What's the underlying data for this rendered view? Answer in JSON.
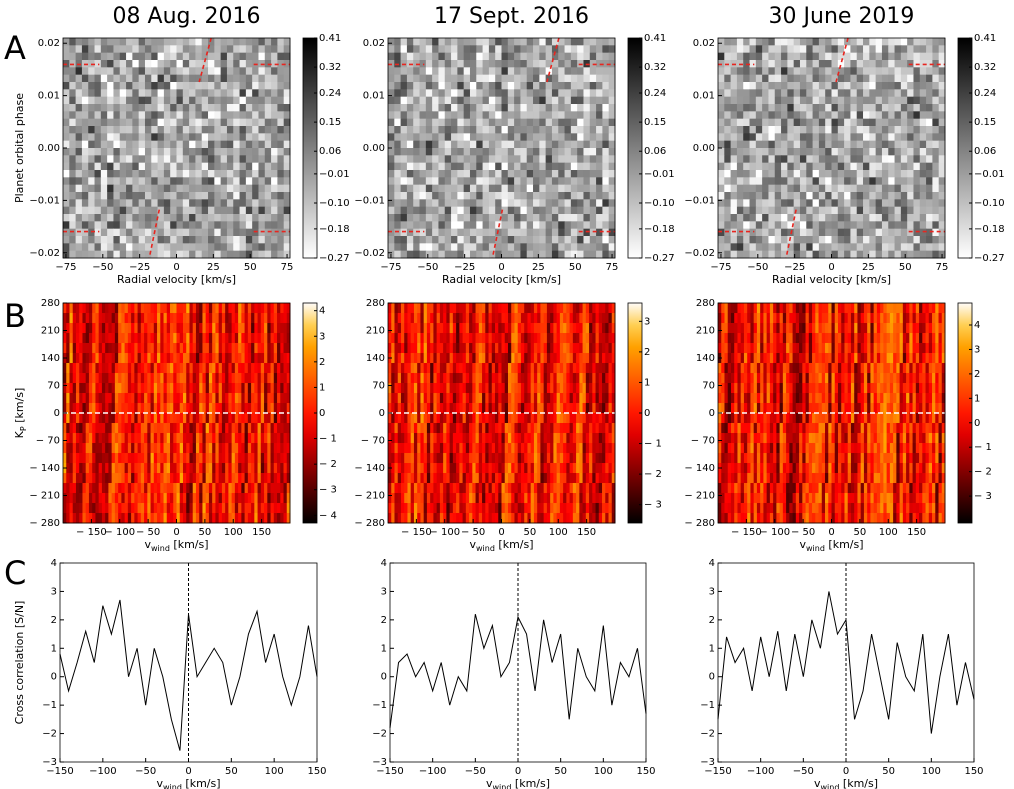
{
  "figure": {
    "row_labels": [
      "A",
      "B",
      "C"
    ]
  },
  "chart_data": [
    {
      "type": "heatmap",
      "cmap": "gray_r",
      "title": "08 Aug. 2016",
      "xlabel": "Radial velocity [km/s]",
      "ylabel": "Planet orbital phase",
      "xlim": [
        -77,
        77
      ],
      "ylim": [
        -0.021,
        0.021
      ],
      "xticks": [
        {
          "value": -75,
          "label": "−75"
        },
        {
          "value": -50,
          "label": "−50"
        },
        {
          "value": -25,
          "label": "−25"
        },
        0,
        25,
        50,
        75
      ],
      "yticks": [
        {
          "value": -0.02,
          "label": "−0.02"
        },
        {
          "value": -0.01,
          "label": "−0.01"
        },
        {
          "value": 0,
          "label": "0.00"
        },
        {
          "value": 0.01,
          "label": "0.01"
        },
        {
          "value": 0.02,
          "label": "0.02"
        }
      ],
      "clim": [
        -0.27,
        0.41
      ],
      "cticks": [
        0.41,
        0.32,
        0.24,
        0.15,
        0.06,
        {
          "value": -0.01,
          "label": "−0.01"
        },
        {
          "value": -0.1,
          "label": "−0.10"
        },
        {
          "value": -0.18,
          "label": "−0.18"
        },
        {
          "value": -0.27,
          "label": "−0.27"
        }
      ]
    },
    {
      "type": "heatmap",
      "cmap": "gray_r",
      "title": "17 Sept. 2016",
      "xlabel": "Radial velocity [km/s]",
      "xlim": [
        -77,
        77
      ],
      "ylim": [
        -0.021,
        0.021
      ],
      "xticks": [
        {
          "value": -75,
          "label": "−75"
        },
        {
          "value": -50,
          "label": "−50"
        },
        {
          "value": -25,
          "label": "−25"
        },
        0,
        25,
        50,
        75
      ],
      "yticks": [
        {
          "value": -0.02,
          "label": "−0.02"
        },
        {
          "value": -0.01,
          "label": "−0.01"
        },
        {
          "value": 0,
          "label": "0.00"
        },
        {
          "value": 0.01,
          "label": "0.01"
        },
        {
          "value": 0.02,
          "label": "0.02"
        }
      ],
      "clim": [
        -0.27,
        0.41
      ],
      "cticks": [
        0.41,
        0.32,
        0.24,
        0.15,
        0.06,
        {
          "value": -0.01,
          "label": "−0.01"
        },
        {
          "value": -0.1,
          "label": "−0.10"
        },
        {
          "value": -0.18,
          "label": "−0.18"
        },
        {
          "value": -0.27,
          "label": "−0.27"
        }
      ]
    },
    {
      "type": "heatmap",
      "cmap": "gray_r",
      "title": "30 June 2019",
      "xlabel": "Radial velocity [km/s]",
      "xlim": [
        -77,
        77
      ],
      "ylim": [
        -0.021,
        0.021
      ],
      "xticks": [
        {
          "value": -75,
          "label": "−75"
        },
        {
          "value": -50,
          "label": "−50"
        },
        {
          "value": -25,
          "label": "−25"
        },
        0,
        25,
        50,
        75
      ],
      "yticks": [
        {
          "value": -0.02,
          "label": "−0.02"
        },
        {
          "value": -0.01,
          "label": "−0.01"
        },
        {
          "value": 0,
          "label": "0.00"
        },
        {
          "value": 0.01,
          "label": "0.01"
        },
        {
          "value": 0.02,
          "label": "0.02"
        }
      ],
      "clim": [
        -0.27,
        0.41
      ],
      "cticks": [
        0.41,
        0.32,
        0.24,
        0.15,
        0.06,
        {
          "value": -0.01,
          "label": "−0.01"
        },
        {
          "value": -0.1,
          "label": "−0.10"
        },
        {
          "value": -0.18,
          "label": "−0.18"
        },
        {
          "value": -0.27,
          "label": "−0.27"
        }
      ]
    },
    {
      "type": "heatmap",
      "cmap": "hot",
      "xlabel": {
        "main": "v",
        "sub": "wind",
        "rest": " [km/s]"
      },
      "ylabel": {
        "main": "K",
        "sub": "P",
        "rest": " [km/s]"
      },
      "xlim": [
        -200,
        200
      ],
      "ylim": [
        -280,
        280
      ],
      "xticks": [
        {
          "value": -150,
          "label": "− 150"
        },
        {
          "value": -100,
          "label": "− 100"
        },
        {
          "value": -50,
          "label": "− 50"
        },
        0,
        50,
        100,
        150
      ],
      "yticks": [
        {
          "value": -280,
          "label": "− 280"
        },
        {
          "value": -210,
          "label": "− 210"
        },
        {
          "value": -140,
          "label": "− 140"
        },
        {
          "value": -70,
          "label": "− 70"
        },
        0,
        70,
        140,
        210,
        280
      ],
      "clim": [
        -4.3,
        4.3
      ],
      "cticks": [
        4,
        3,
        2,
        1,
        0,
        {
          "value": -1,
          "label": "− 1"
        },
        {
          "value": -2,
          "label": "− 2"
        },
        {
          "value": -3,
          "label": "− 3"
        },
        {
          "value": -4,
          "label": "− 4"
        }
      ]
    },
    {
      "type": "heatmap",
      "cmap": "hot",
      "xlabel": {
        "main": "v",
        "sub": "wind",
        "rest": " [km/s]"
      },
      "xlim": [
        -200,
        200
      ],
      "ylim": [
        -280,
        280
      ],
      "xticks": [
        {
          "value": -150,
          "label": "− 150"
        },
        {
          "value": -100,
          "label": "− 100"
        },
        {
          "value": -50,
          "label": "− 50"
        },
        0,
        50,
        100,
        150
      ],
      "yticks": [
        {
          "value": -280,
          "label": "− 280"
        },
        {
          "value": -210,
          "label": "− 210"
        },
        {
          "value": -140,
          "label": "− 140"
        },
        {
          "value": -70,
          "label": "− 70"
        },
        0,
        70,
        140,
        210,
        280
      ],
      "clim": [
        -3.6,
        3.6
      ],
      "cticks": [
        3,
        2,
        1,
        0,
        {
          "value": -1,
          "label": "− 1"
        },
        {
          "value": -2,
          "label": "− 2"
        },
        {
          "value": -3,
          "label": "− 3"
        }
      ]
    },
    {
      "type": "heatmap",
      "cmap": "hot",
      "xlabel": {
        "main": "v",
        "sub": "wind",
        "rest": " [km/s]"
      },
      "xlim": [
        -200,
        200
      ],
      "ylim": [
        -280,
        280
      ],
      "xticks": [
        {
          "value": -150,
          "label": "− 150"
        },
        {
          "value": -100,
          "label": "− 100"
        },
        {
          "value": -50,
          "label": "− 50"
        },
        0,
        50,
        100,
        150
      ],
      "yticks": [
        {
          "value": -280,
          "label": "− 280"
        },
        {
          "value": -210,
          "label": "− 210"
        },
        {
          "value": -140,
          "label": "− 140"
        },
        {
          "value": -70,
          "label": "− 70"
        },
        0,
        70,
        140,
        210,
        280
      ],
      "clim": [
        -4.1,
        4.9
      ],
      "cticks": [
        4,
        3,
        2,
        1,
        0,
        {
          "value": -1,
          "label": "− 1"
        },
        {
          "value": -2,
          "label": "− 2"
        },
        {
          "value": -3,
          "label": "− 3"
        }
      ]
    },
    {
      "type": "line",
      "color": "#000000",
      "xlabel": {
        "main": "v",
        "sub": "wind",
        "rest": " [km/s]"
      },
      "ylabel": "Cross correlation [S/N]",
      "xlim": [
        -150,
        150
      ],
      "ylim": [
        -3,
        4
      ],
      "xticks": [
        {
          "value": -150,
          "label": "−150"
        },
        {
          "value": -100,
          "label": "−100"
        },
        {
          "value": -50,
          "label": "−50"
        },
        0,
        50,
        100,
        150
      ],
      "yticks": [
        {
          "value": -3,
          "label": "−3"
        },
        {
          "value": -2,
          "label": "−2"
        },
        {
          "value": -1,
          "label": "−1"
        },
        0,
        1,
        2,
        3,
        4
      ],
      "x": [
        -150,
        -140,
        -130,
        -120,
        -110,
        -100,
        -90,
        -80,
        -70,
        -60,
        -50,
        -40,
        -30,
        -20,
        -10,
        0,
        10,
        20,
        30,
        40,
        50,
        60,
        70,
        80,
        90,
        100,
        110,
        120,
        130,
        140,
        150
      ],
      "values": [
        0.8,
        -0.5,
        0.5,
        1.6,
        0.5,
        2.5,
        1.5,
        2.7,
        0,
        1,
        -1,
        1,
        0,
        -1.5,
        -2.6,
        2.2,
        0,
        0.5,
        1,
        0.5,
        -1,
        0,
        1.5,
        2.3,
        0.5,
        1.5,
        0,
        -1,
        0,
        1.8,
        0
      ]
    },
    {
      "type": "line",
      "color": "#000000",
      "xlabel": {
        "main": "v",
        "sub": "wind",
        "rest": " [km/s]"
      },
      "xlim": [
        -150,
        150
      ],
      "ylim": [
        -3,
        4
      ],
      "xticks": [
        {
          "value": -150,
          "label": "−150"
        },
        {
          "value": -100,
          "label": "−100"
        },
        {
          "value": -50,
          "label": "−50"
        },
        0,
        50,
        100,
        150
      ],
      "yticks": [
        {
          "value": -3,
          "label": "−3"
        },
        {
          "value": -2,
          "label": "−2"
        },
        {
          "value": -1,
          "label": "−1"
        },
        0,
        1,
        2,
        3,
        4
      ],
      "x": [
        -150,
        -140,
        -130,
        -120,
        -110,
        -100,
        -90,
        -80,
        -70,
        -60,
        -50,
        -40,
        -30,
        -20,
        -10,
        0,
        10,
        20,
        30,
        40,
        50,
        60,
        70,
        80,
        90,
        100,
        110,
        120,
        130,
        140,
        150
      ],
      "values": [
        -1.8,
        0.5,
        0.8,
        0,
        0.5,
        -0.5,
        0.5,
        -1,
        0,
        -0.5,
        2.2,
        1,
        1.8,
        0,
        0.5,
        2.1,
        1.5,
        -0.5,
        2,
        0.5,
        1.5,
        -1.5,
        1,
        0,
        -0.5,
        1.8,
        -1,
        0.5,
        0,
        1,
        -1.3
      ]
    },
    {
      "type": "line",
      "color": "#000000",
      "xlabel": {
        "main": "v",
        "sub": "wind",
        "rest": " [km/s]"
      },
      "xlim": [
        -150,
        150
      ],
      "ylim": [
        -3,
        4
      ],
      "xticks": [
        {
          "value": -150,
          "label": "−150"
        },
        {
          "value": -100,
          "label": "−100"
        },
        {
          "value": -50,
          "label": "−50"
        },
        0,
        50,
        100,
        150
      ],
      "yticks": [
        {
          "value": -3,
          "label": "−3"
        },
        {
          "value": -2,
          "label": "−2"
        },
        {
          "value": -1,
          "label": "−1"
        },
        0,
        1,
        2,
        3,
        4
      ],
      "x": [
        -150,
        -140,
        -130,
        -120,
        -110,
        -100,
        -90,
        -80,
        -70,
        -60,
        -50,
        -40,
        -30,
        -20,
        -10,
        0,
        10,
        20,
        30,
        40,
        50,
        60,
        70,
        80,
        90,
        100,
        110,
        120,
        130,
        140,
        150
      ],
      "values": [
        -1.5,
        1.4,
        0.5,
        1,
        -0.5,
        1.4,
        0,
        1.6,
        -0.5,
        1.5,
        0,
        2,
        1,
        3,
        1.5,
        2,
        -1.5,
        -0.5,
        1.5,
        0,
        -1.5,
        1.2,
        0,
        -0.5,
        1.5,
        -2,
        0,
        1.5,
        -1,
        0.5,
        -0.8
      ]
    }
  ]
}
